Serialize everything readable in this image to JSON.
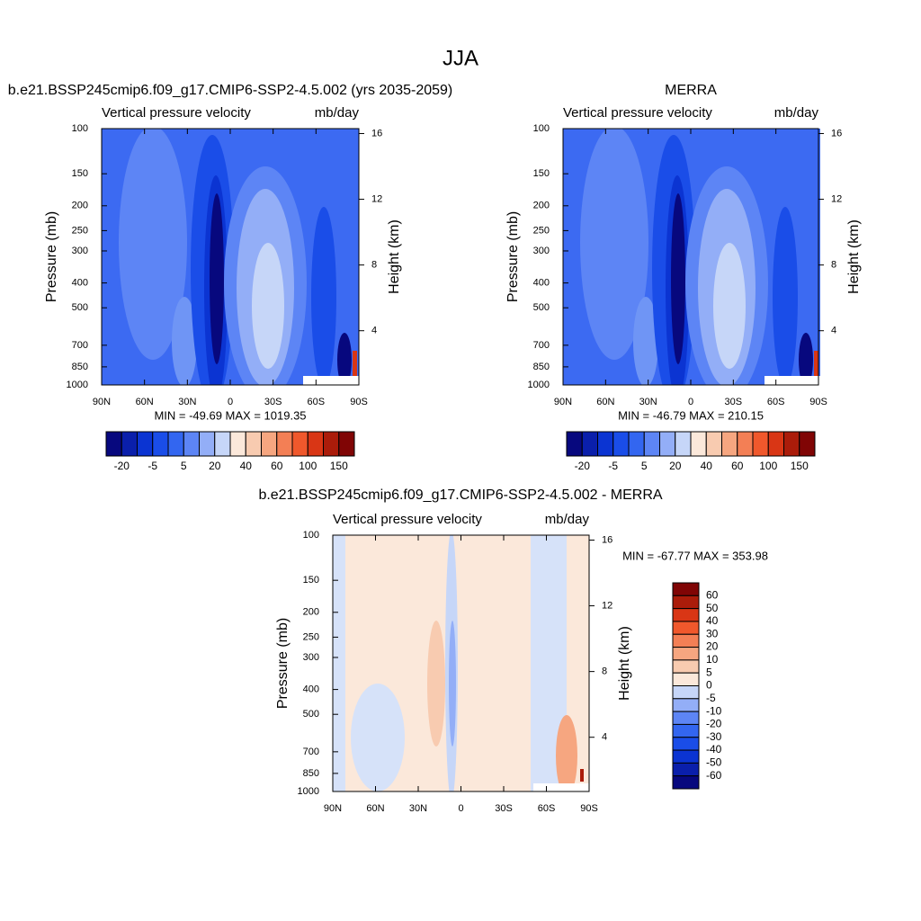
{
  "title": "JJA",
  "chart_data": [
    {
      "type": "contour",
      "title": "b.e21.BSSP245cmip6.f09_g17.CMIP6-SSP2-4.5.002 (yrs 2035-2059)",
      "left_label": "Vertical pressure velocity",
      "right_label": "mb/day",
      "ylabel": "Pressure (mb)",
      "y2label": "Height (km)",
      "stats": "MIN = -49.69  MAX = 1019.35",
      "xlim": [
        90,
        -90
      ],
      "xticks": [
        {
          "value": 90,
          "label": "90N"
        },
        {
          "value": 60,
          "label": "60N"
        },
        {
          "value": 30,
          "label": "30N"
        },
        0,
        {
          "value": -30,
          "label": "30S"
        },
        {
          "value": -60,
          "label": "60S"
        },
        {
          "value": -90,
          "label": "90S"
        }
      ],
      "ylim": [
        1000,
        100
      ],
      "log_y": true,
      "yticks": [
        100,
        150,
        200,
        250,
        300,
        400,
        500,
        700,
        850,
        1000
      ],
      "y2lim": [
        0.7,
        16.3
      ],
      "y2ticks": [
        4,
        8,
        12,
        16
      ],
      "colorbar": {
        "orientation": "horizontal",
        "colors": [
          "#07087e",
          "#0a1fab",
          "#0b34d2",
          "#1a4de8",
          "#3366f0",
          "#5d85f5",
          "#93aef7",
          "#c6d6f8",
          "#fbe8da",
          "#f8cbb0",
          "#f6a680",
          "#f37f55",
          "#f0582c",
          "#d93615",
          "#ab1c0a",
          "#800505"
        ],
        "labels": [
          -20,
          -5,
          5,
          20,
          40,
          60,
          100,
          150
        ]
      }
    },
    {
      "type": "contour",
      "title": "MERRA",
      "left_label": "Vertical pressure velocity",
      "right_label": "mb/day",
      "ylabel": "Pressure (mb)",
      "y2label": "Height (km)",
      "stats": "MIN = -46.79  MAX = 210.15",
      "xlim": [
        90,
        -90
      ],
      "xticks": [
        {
          "value": 90,
          "label": "90N"
        },
        {
          "value": 60,
          "label": "60N"
        },
        {
          "value": 30,
          "label": "30N"
        },
        0,
        {
          "value": -30,
          "label": "30S"
        },
        {
          "value": -60,
          "label": "60S"
        },
        {
          "value": -90,
          "label": "90S"
        }
      ],
      "ylim": [
        1000,
        100
      ],
      "log_y": true,
      "yticks": [
        100,
        150,
        200,
        250,
        300,
        400,
        500,
        700,
        850,
        1000
      ],
      "y2lim": [
        0.7,
        16.3
      ],
      "y2ticks": [
        4,
        8,
        12,
        16
      ],
      "colorbar": {
        "orientation": "horizontal",
        "colors": [
          "#07087e",
          "#0a1fab",
          "#0b34d2",
          "#1a4de8",
          "#3366f0",
          "#5d85f5",
          "#93aef7",
          "#c6d6f8",
          "#fbe8da",
          "#f8cbb0",
          "#f6a680",
          "#f37f55",
          "#f0582c",
          "#d93615",
          "#ab1c0a",
          "#800505"
        ],
        "labels": [
          -20,
          -5,
          5,
          20,
          40,
          60,
          100,
          150
        ]
      }
    },
    {
      "type": "contour",
      "title": "b.e21.BSSP245cmip6.f09_g17.CMIP6-SSP2-4.5.002 - MERRA",
      "left_label": "Vertical pressure velocity",
      "right_label": "mb/day",
      "ylabel": "Pressure (mb)",
      "y2label": "Height (km)",
      "stats": "MIN = -67.77  MAX = 353.98",
      "xlim": [
        90,
        -90
      ],
      "xticks": [
        {
          "value": 90,
          "label": "90N"
        },
        {
          "value": 60,
          "label": "60N"
        },
        {
          "value": 30,
          "label": "30N"
        },
        0,
        {
          "value": -30,
          "label": "30S"
        },
        {
          "value": -60,
          "label": "60S"
        },
        {
          "value": -90,
          "label": "90S"
        }
      ],
      "ylim": [
        1000,
        100
      ],
      "log_y": true,
      "yticks": [
        100,
        150,
        200,
        250,
        300,
        400,
        500,
        700,
        850,
        1000
      ],
      "y2lim": [
        0.7,
        16.3
      ],
      "y2ticks": [
        4,
        8,
        12,
        16
      ],
      "colorbar": {
        "orientation": "vertical",
        "colors": [
          "#800505",
          "#ab1c0a",
          "#d93615",
          "#f0582c",
          "#f37f55",
          "#f6a680",
          "#f8cbb0",
          "#fbe8da",
          "#c6d6f8",
          "#93aef7",
          "#5d85f5",
          "#3366f0",
          "#1a4de8",
          "#0b34d2",
          "#0a1fab",
          "#07087e"
        ],
        "labels": [
          60,
          50,
          40,
          30,
          20,
          10,
          5,
          0,
          -5,
          -10,
          -20,
          -30,
          -40,
          -50,
          -60
        ]
      }
    }
  ]
}
